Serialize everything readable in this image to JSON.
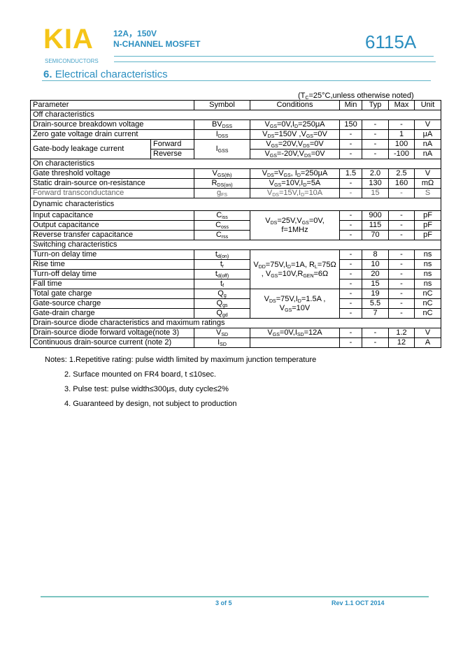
{
  "header": {
    "logo": "KIA",
    "logo_sub": "SEMICONDUCTORS",
    "rating": "12A，150V",
    "type": "N-CHANNEL MOSFET",
    "part": "6115A",
    "colors": {
      "logo": "#f5c518",
      "accent": "#2c8fc0"
    }
  },
  "section": {
    "number": "6.",
    "title": "Electrical characteristics"
  },
  "table_note": "(T_{C}=25°C,unless otherwise noted)",
  "table": {
    "columns": [
      "Parameter",
      "Symbol",
      "Conditions",
      "Min",
      "Typ",
      "Max",
      "Unit"
    ],
    "rows": [
      {
        "section": "Off characteristics"
      },
      {
        "param": "Drain-source breakdown voltage",
        "symbol": "BV_{DSS}",
        "cond": "V_{GS}=0V,I_{D}=250μA",
        "min": "150",
        "typ": "-",
        "max": "-",
        "unit": "V"
      },
      {
        "param": "Zero gate voltage drain current",
        "symbol": "I_{DSS}",
        "cond": "V_{DS}=150V ,V_{GS}=0V",
        "min": "-",
        "typ": "-",
        "max": "1",
        "unit": "μA"
      },
      {
        "param": "Gate-body leakage current",
        "subparam": "Forward",
        "symbol": "I_{GSS}",
        "cond": "V_{GS}=20V,V_{DS}=0V",
        "min": "-",
        "typ": "-",
        "max": "100",
        "unit": "nA"
      },
      {
        "subparam": "Reverse",
        "cond": "V_{GS}=-20V,V_{DS}=0V",
        "min": "-",
        "typ": "-",
        "max": "-100",
        "unit": "nA"
      },
      {
        "section": "On characteristics"
      },
      {
        "param": "Gate threshold voltage",
        "symbol": "V_{GS(th)}",
        "cond": "V_{DS}=V_{GS}, I_{D}=250μA",
        "min": "1.5",
        "typ": "2.0",
        "max": "2.5",
        "unit": "V"
      },
      {
        "param": "Static drain-source on-resistance",
        "symbol": "R_{DS(on)}",
        "cond": "V_{GS}=10V,I_{D}=5A",
        "min": "-",
        "typ": "130",
        "max": "160",
        "unit": "mΩ"
      },
      {
        "param": "Forward transconductance",
        "symbol": "g_{FS}",
        "cond": "V_{DS}=15V,I_{D}=10A",
        "min": "-",
        "typ": "15",
        "max": "-",
        "unit": "S",
        "muted": true
      },
      {
        "section": "Dynamic characteristics",
        "tall": true
      },
      {
        "param": "Input capacitance",
        "symbol": "C_{iss}",
        "cond": "V_{DS}=25V,V_{GS}=0V, f=1MHz",
        "cond_rows": 3,
        "min": "-",
        "typ": "900",
        "max": "-",
        "unit": "pF"
      },
      {
        "param": "Output capacitance",
        "symbol": "C_{oss}",
        "min": "-",
        "typ": "115",
        "max": "-",
        "unit": "pF"
      },
      {
        "param": "Reverse transfer capacitance",
        "symbol": "C_{rss}",
        "min": "-",
        "typ": "70",
        "max": "-",
        "unit": "pF"
      },
      {
        "section": "Switching characteristics"
      },
      {
        "param": "Turn-on delay time",
        "symbol": "t_{d(on)}",
        "cond": "V_{DD}=75V,I_{D}=1A, R_{L}=75Ω , V_{GS}=10V,R_{GEN}=6Ω",
        "cond_rows": 4,
        "min": "-",
        "typ": "8",
        "max": "-",
        "unit": "ns"
      },
      {
        "param": "Rise time",
        "symbol": "t_{r}",
        "min": "-",
        "typ": "10",
        "max": "-",
        "unit": "ns"
      },
      {
        "param": "Turn-off delay time",
        "symbol": "t_{d(off)}",
        "min": "-",
        "typ": "20",
        "max": "-",
        "unit": "ns"
      },
      {
        "param": "Fall time",
        "symbol": "t_{f}",
        "min": "-",
        "typ": "15",
        "max": "-",
        "unit": "ns"
      },
      {
        "param": "Total gate charge",
        "symbol": "Q_{g}",
        "cond": "V_{DS}=75V,I_{D}=1.5A , V_{GS}=10V",
        "cond_rows": 3,
        "min": "-",
        "typ": "19",
        "max": "-",
        "unit": "nC"
      },
      {
        "param": "Gate-source charge",
        "symbol": "Q_{gs}",
        "min": "-",
        "typ": "5.5",
        "max": "-",
        "unit": "nC"
      },
      {
        "param": "Gate-drain charge",
        "symbol": "Q_{gd}",
        "min": "-",
        "typ": "7",
        "max": "-",
        "unit": "nC"
      },
      {
        "section": "Drain-source diode characteristics and maximum ratings"
      },
      {
        "param": "Drain-source diode forward voltage(note 3)",
        "symbol": "V_{SD}",
        "cond": "V_{GS}=0V,I_{SD}=12A",
        "min": "-",
        "typ": "-",
        "max": "1.2",
        "unit": "V"
      },
      {
        "param": "Continuous drain-source current (note 2)",
        "symbol": "I_{SD}",
        "cond": "",
        "min": "-",
        "typ": "-",
        "max": "12",
        "unit": "A"
      }
    ]
  },
  "notes": [
    "Notes: 1.Repetitive rating: pulse width limited by maximum junction temperature",
    "2. Surface mounted on FR4 board, t ≤10sec.",
    "3. Pulse test: pulse width≤300μs, duty cycle≤2%",
    "4. Guaranteed by design, not subject to production"
  ],
  "footer": {
    "page": "3 of 5",
    "revision": "Rev 1.1 OCT 2014"
  }
}
